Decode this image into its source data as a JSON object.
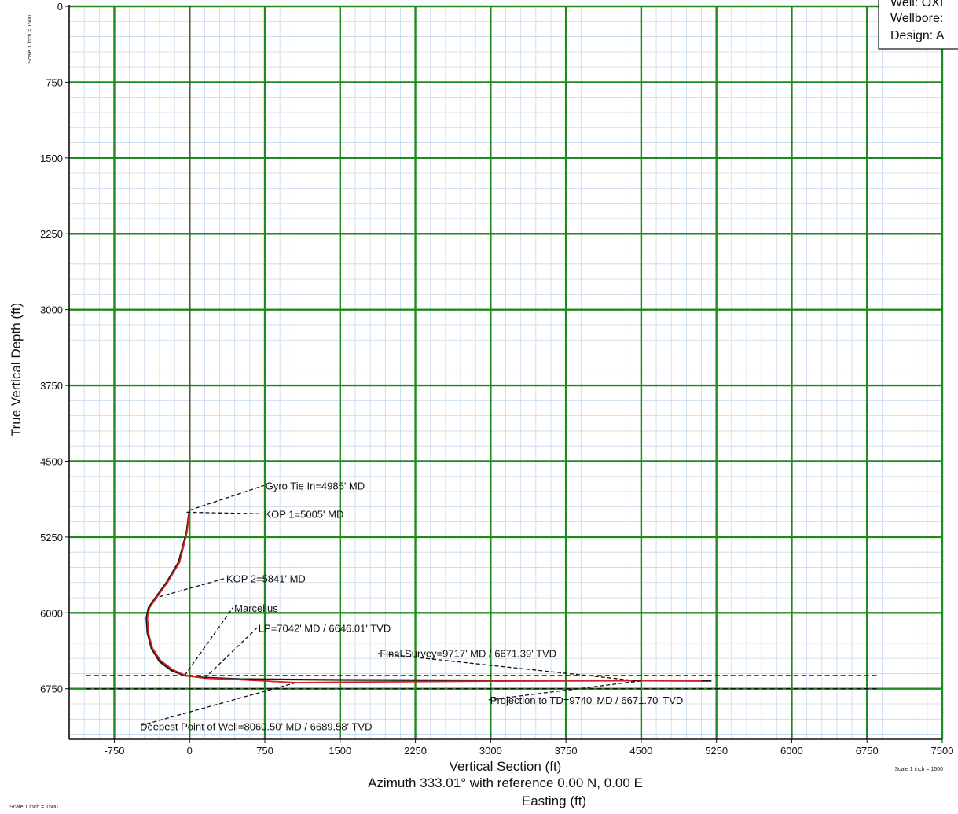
{
  "header": {
    "well": "Well: OXI",
    "wellbore": "Wellbore:",
    "design": "Design: A"
  },
  "scale_notes": {
    "left": "Scale 1 inch = 1500",
    "right": "Scale 1 inch = 1500",
    "bottom": "Scale 1 inch = 1500"
  },
  "chart_data": {
    "type": "line",
    "xlabel": "Vertical Section (ft)",
    "xlabel_line2": "Azimuth 333.01° with reference 0.00 N, 0.00 E",
    "xlabel_line3": "Easting (ft)",
    "ylabel": "True Vertical Depth (ft)",
    "xlim": [
      -1200,
      7500
    ],
    "ylim": [
      0,
      7250
    ],
    "y_inverted": true,
    "grid": true,
    "x_ticks": [
      -750,
      0,
      750,
      1500,
      2250,
      3000,
      3750,
      4500,
      5250,
      6000,
      6750,
      7500
    ],
    "y_ticks": [
      0,
      750,
      1500,
      2250,
      3000,
      3750,
      4500,
      5250,
      6000,
      6750
    ],
    "series": [
      {
        "role": "wellbore-plan",
        "color": "#1a1a1a",
        "x": [
          0,
          0,
          -5,
          -30,
          -110,
          -230,
          -340,
          -410,
          -430,
          -420,
          -380,
          -300,
          -180,
          -50,
          150,
          500,
          1500,
          3000,
          4500,
          5200
        ],
        "y": [
          0,
          4985,
          5005,
          5200,
          5500,
          5700,
          5850,
          5950,
          6050,
          6200,
          6350,
          6480,
          6570,
          6620,
          6640,
          6655,
          6663,
          6667,
          6670,
          6672
        ]
      },
      {
        "role": "wellbore-actual",
        "color": "#d42020",
        "x": [
          0,
          0,
          -3,
          -25,
          -100,
          -220,
          -330,
          -400,
          -420,
          -410,
          -370,
          -290,
          -170,
          -40,
          150,
          500,
          1060,
          1500,
          3000,
          4500,
          5100
        ],
        "y": [
          0,
          4985,
          5005,
          5200,
          5500,
          5700,
          5850,
          5950,
          6050,
          6200,
          6350,
          6470,
          6560,
          6620,
          6646,
          6660,
          6690,
          6685,
          6675,
          6671,
          6672
        ]
      }
    ],
    "reference_lines": [
      {
        "role": "formation-top",
        "y": 6620,
        "x_range": [
          -1030,
          6870
        ]
      },
      {
        "role": "formation-base",
        "y": 6750,
        "x_range": [
          -1030,
          6870
        ]
      }
    ],
    "annotations": [
      {
        "text": "Gyro Tie In=4985' MD",
        "x": 0,
        "y": 4985,
        "label_x": 740,
        "label_y": 4740
      },
      {
        "text": "KOP 1=5005' MD",
        "x": -30,
        "y": 5005,
        "label_x": 730,
        "label_y": 5020
      },
      {
        "text": "KOP 2=5841' MD",
        "x": -300,
        "y": 5840,
        "label_x": 350,
        "label_y": 5660
      },
      {
        "text": "Marcellus",
        "x": -50,
        "y": 6620,
        "label_x": 430,
        "label_y": 5950
      },
      {
        "text": "LP=7042' MD / 6646.01' TVD",
        "x": 150,
        "y": 6646,
        "label_x": 670,
        "label_y": 6150
      },
      {
        "text": "Final Survey=9717' MD / 6671.39' TVD",
        "x": 4450,
        "y": 6671,
        "label_x": 1880,
        "label_y": 6400
      },
      {
        "text": "Projection to TD=9740' MD / 6671.70' TVD",
        "x": 4500,
        "y": 6672,
        "label_x": 2980,
        "label_y": 6860
      },
      {
        "text": "Deepest Point of Well=8060.50' MD / 6689.58' TVD",
        "x": 1060,
        "y": 6690,
        "label_x": -510,
        "label_y": 7120
      }
    ]
  }
}
